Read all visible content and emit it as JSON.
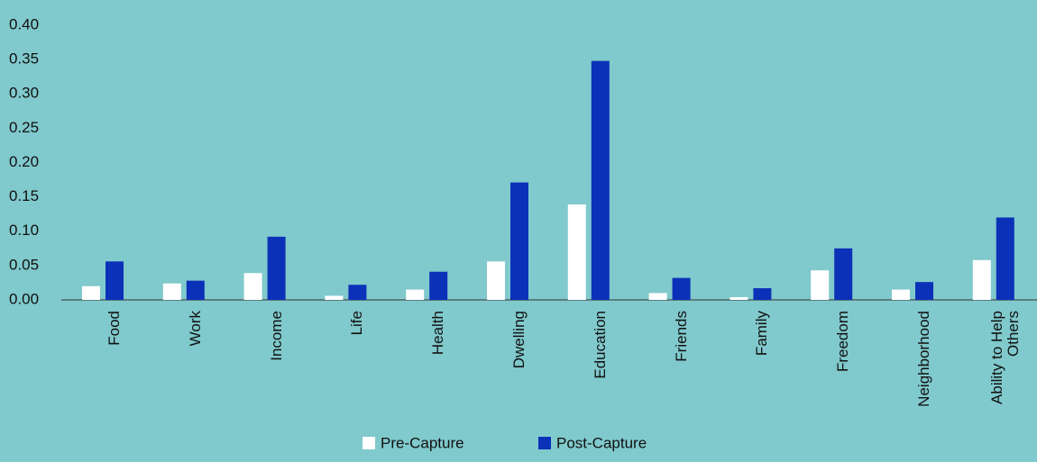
{
  "chart_data": {
    "type": "bar",
    "categories": [
      "Food",
      "Work",
      "Income",
      "Life",
      "Health",
      "Dwelling",
      "Education",
      "Friends",
      "Family",
      "Freedom",
      "Neighborhood",
      "Ability to Help Others"
    ],
    "series": [
      {
        "name": "Pre-Capture",
        "color": "#ffffff",
        "values": [
          0.02,
          0.024,
          0.039,
          0.006,
          0.015,
          0.056,
          0.139,
          0.01,
          0.004,
          0.043,
          0.015,
          0.058
        ]
      },
      {
        "name": "Post-Capture",
        "color": "#0b31b8",
        "values": [
          0.056,
          0.028,
          0.092,
          0.022,
          0.041,
          0.171,
          0.348,
          0.032,
          0.017,
          0.075,
          0.026,
          0.12
        ]
      }
    ],
    "ylim": [
      0,
      0.4
    ],
    "yticks": [
      {
        "value": 0,
        "label": "0.00"
      },
      {
        "value": 0.05,
        "label": "0.05"
      },
      {
        "value": 0.1,
        "label": "0.10"
      },
      {
        "value": 0.15,
        "label": "0.15"
      },
      {
        "value": 0.2,
        "label": "0.20"
      },
      {
        "value": 0.25,
        "label": "0.25"
      },
      {
        "value": 0.3,
        "label": "0.30"
      },
      {
        "value": 0.35,
        "label": "0.35"
      },
      {
        "value": 0.4,
        "label": "0.40"
      }
    ],
    "grid": false
  }
}
